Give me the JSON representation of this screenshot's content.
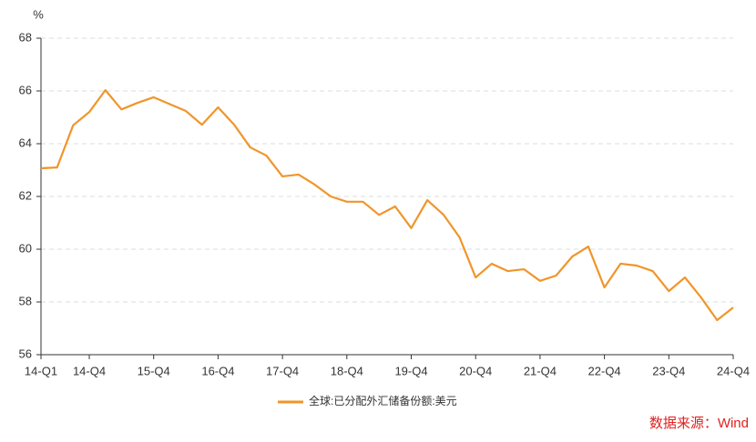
{
  "chart_data": {
    "type": "line",
    "y_label": "%",
    "categories": [
      "14-Q1",
      null,
      null,
      "14-Q4",
      null,
      null,
      null,
      "15-Q4",
      null,
      null,
      null,
      "16-Q4",
      null,
      null,
      null,
      "17-Q4",
      null,
      null,
      null,
      "18-Q4",
      null,
      null,
      null,
      "19-Q4",
      null,
      null,
      null,
      "20-Q4",
      null,
      null,
      null,
      "21-Q4",
      null,
      null,
      null,
      "22-Q4",
      null,
      null,
      null,
      "23-Q4",
      null,
      null,
      null,
      "24-Q4"
    ],
    "series": [
      {
        "name": "全球:已分配外汇储备份额:美元",
        "color": "#f0952a",
        "values": [
          63.07,
          63.1,
          64.7,
          65.2,
          66.03,
          65.3,
          65.55,
          65.76,
          65.5,
          65.24,
          64.72,
          65.38,
          64.72,
          63.86,
          63.55,
          62.76,
          62.83,
          62.45,
          62.0,
          61.8,
          61.8,
          61.3,
          61.62,
          60.8,
          61.86,
          61.31,
          60.45,
          58.93,
          59.45,
          59.17,
          59.24,
          58.8,
          59.0,
          59.72,
          60.1,
          58.55,
          59.45,
          59.38,
          59.17,
          58.41,
          58.93,
          58.17,
          57.31,
          57.79
        ]
      }
    ],
    "ylim": [
      56,
      68
    ],
    "yticks": [
      56,
      58,
      60,
      62,
      64,
      66,
      68
    ],
    "grid": true,
    "legend": "bottom",
    "source": "数据来源：Wind"
  }
}
